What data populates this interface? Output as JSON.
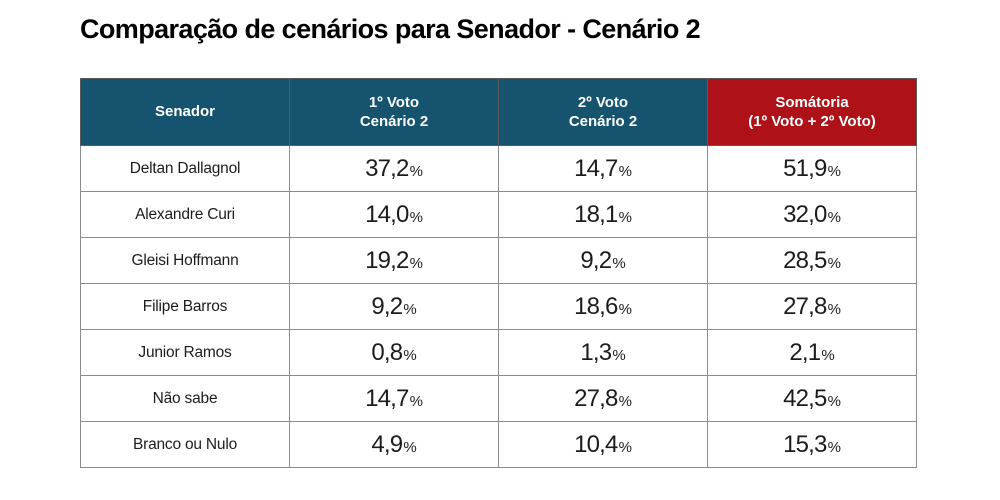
{
  "title": "Comparação de cenários para Senador - Cenário 2",
  "percent_sign": "%",
  "colors": {
    "header_blue": "#15536f",
    "header_red": "#ae1218",
    "header_text": "#ffffff",
    "body_text": "#1c1c1c",
    "border": "#8c8c8c",
    "background": "#ffffff"
  },
  "table": {
    "headers": [
      {
        "line1": "Senador",
        "line2": ""
      },
      {
        "line1": "1º Voto",
        "line2": "Cenário 2"
      },
      {
        "line1": "2º Voto",
        "line2": "Cenário 2"
      },
      {
        "line1": "Somátoria",
        "line2": "(1º Voto + 2º Voto)"
      }
    ],
    "rows": [
      {
        "name": "Deltan Dallagnol",
        "v1": "37,2",
        "v2": "14,7",
        "v3": "51,9"
      },
      {
        "name": "Alexandre Curi",
        "v1": "14,0",
        "v2": "18,1",
        "v3": "32,0"
      },
      {
        "name": "Gleisi Hoffmann",
        "v1": "19,2",
        "v2": "9,2",
        "v3": "28,5"
      },
      {
        "name": "Filipe Barros",
        "v1": "9,2",
        "v2": "18,6",
        "v3": "27,8"
      },
      {
        "name": "Junior Ramos",
        "v1": "0,8",
        "v2": "1,3",
        "v3": "2,1"
      },
      {
        "name": "Não sabe",
        "v1": "14,7",
        "v2": "27,8",
        "v3": "42,5"
      },
      {
        "name": "Branco ou Nulo",
        "v1": "4,9",
        "v2": "10,4",
        "v3": "15,3"
      }
    ]
  },
  "chart_data": {
    "type": "table",
    "title": "Comparação de cenários para Senador - Cenário 2",
    "columns": [
      "Senador",
      "1º Voto Cenário 2",
      "2º Voto Cenário 2",
      "Somátoria (1º Voto + 2º Voto)"
    ],
    "unit": "%",
    "rows": [
      [
        "Deltan Dallagnol",
        37.2,
        14.7,
        51.9
      ],
      [
        "Alexandre Curi",
        14.0,
        18.1,
        32.0
      ],
      [
        "Gleisi Hoffmann",
        19.2,
        9.2,
        28.5
      ],
      [
        "Filipe Barros",
        9.2,
        18.6,
        27.8
      ],
      [
        "Junior Ramos",
        0.8,
        1.3,
        2.1
      ],
      [
        "Não sabe",
        14.7,
        27.8,
        42.5
      ],
      [
        "Branco ou Nulo",
        4.9,
        10.4,
        15.3
      ]
    ]
  }
}
